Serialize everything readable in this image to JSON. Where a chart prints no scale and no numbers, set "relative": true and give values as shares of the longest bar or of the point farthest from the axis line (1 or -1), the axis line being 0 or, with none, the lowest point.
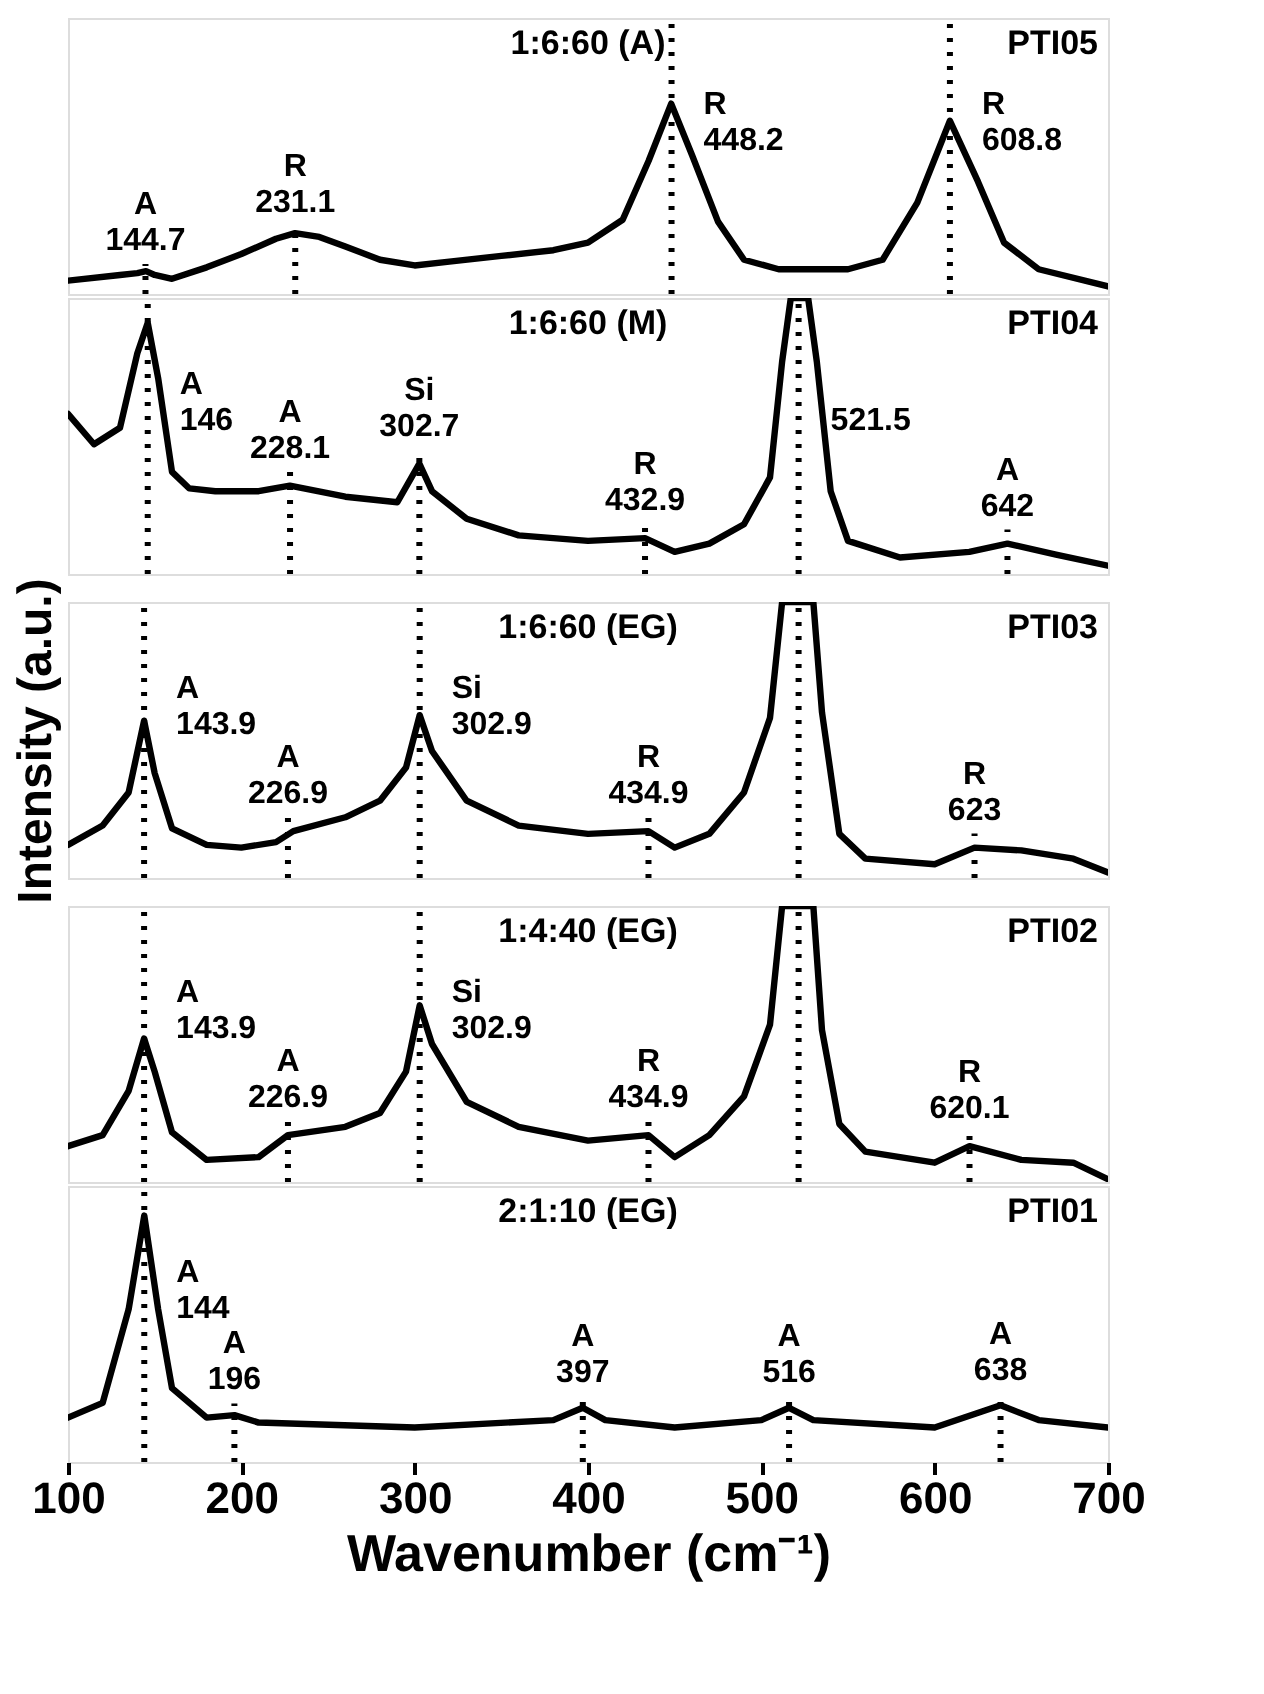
{
  "chart_data": [
    {
      "type": "line",
      "title": "1:6:60  (A)",
      "subtitle": "PTI05",
      "relative": true,
      "xlim": [
        100,
        700
      ],
      "tick_labels": false,
      "line_style": "solid",
      "x": [
        100,
        130,
        140,
        145,
        150,
        160,
        180,
        200,
        220,
        231,
        245,
        260,
        280,
        300,
        320,
        350,
        380,
        400,
        420,
        435,
        448,
        460,
        475,
        490,
        510,
        550,
        570,
        590,
        608.8,
        625,
        640,
        660,
        700
      ],
      "series": [
        {
          "color": "#000000",
          "values": [
            0.07,
            0.1,
            0.11,
            0.12,
            0.1,
            0.08,
            0.14,
            0.21,
            0.29,
            0.32,
            0.3,
            0.25,
            0.18,
            0.15,
            0.17,
            0.2,
            0.23,
            0.27,
            0.39,
            0.7,
            1.0,
            0.73,
            0.38,
            0.18,
            0.13,
            0.13,
            0.18,
            0.48,
            0.91,
            0.59,
            0.27,
            0.13,
            0.04
          ]
        }
      ],
      "ref_lines": [
        {
          "axis": "x",
          "value": 144.7,
          "label": "A\n144.7",
          "color": "#000000",
          "line_style": "dotted"
        },
        {
          "axis": "x",
          "value": 231.1,
          "label": "R\n231.1",
          "color": "#000000",
          "line_style": "dotted"
        },
        {
          "axis": "x",
          "value": 448.2,
          "label": "R\n448.2",
          "color": "#000000",
          "line_style": "dotted"
        },
        {
          "axis": "x",
          "value": 608.8,
          "label": "R\n608.8",
          "color": "#000000",
          "line_style": "dotted"
        }
      ]
    },
    {
      "type": "line",
      "title": "1:6:60  (M)",
      "subtitle": "PTI04",
      "relative": true,
      "xlim": [
        100,
        700
      ],
      "tick_labels": false,
      "line_style": "solid",
      "x": [
        100,
        115,
        130,
        140,
        146,
        152,
        160,
        170,
        185,
        210,
        228,
        260,
        290,
        302.7,
        310,
        330,
        360,
        400,
        432.9,
        450,
        470,
        490,
        505,
        512,
        517,
        521.5,
        527,
        532,
        540,
        550,
        580,
        620,
        642,
        670,
        700
      ],
      "series": [
        {
          "color": "#000000",
          "values": [
            0.58,
            0.47,
            0.53,
            0.8,
            0.91,
            0.71,
            0.37,
            0.31,
            0.3,
            0.3,
            0.32,
            0.28,
            0.26,
            0.4,
            0.3,
            0.2,
            0.14,
            0.12,
            0.13,
            0.08,
            0.11,
            0.18,
            0.35,
            0.77,
            1.0,
            1.0,
            1.0,
            0.77,
            0.3,
            0.12,
            0.06,
            0.08,
            0.11,
            0.07,
            0.03
          ]
        }
      ],
      "ref_lines": [
        {
          "axis": "x",
          "value": 146,
          "label": "A\n146",
          "color": "#000000",
          "line_style": "dotted"
        },
        {
          "axis": "x",
          "value": 228.1,
          "label": "A\n228.1",
          "color": "#000000",
          "line_style": "dotted"
        },
        {
          "axis": "x",
          "value": 302.7,
          "label": "Si\n302.7",
          "color": "#000000",
          "line_style": "dotted"
        },
        {
          "axis": "x",
          "value": 432.9,
          "label": "R\n432.9",
          "color": "#000000",
          "line_style": "dotted"
        },
        {
          "axis": "x",
          "value": 521.5,
          "label": "521.5",
          "color": "#000000",
          "line_style": "dotted"
        },
        {
          "axis": "x",
          "value": 642,
          "label": "A\n642",
          "color": "#000000",
          "line_style": "dotted"
        }
      ]
    },
    {
      "type": "line",
      "title": "1:6:60  (EG)",
      "subtitle": "PTI03",
      "ylabel": "Intensity (a.u.)",
      "relative": true,
      "xlim": [
        100,
        700
      ],
      "tick_labels": false,
      "line_style": "solid",
      "x": [
        100,
        120,
        135,
        143.9,
        150,
        160,
        180,
        200,
        220,
        230,
        260,
        280,
        295,
        302.9,
        310,
        330,
        360,
        400,
        434.9,
        450,
        470,
        490,
        505,
        512,
        521.5,
        530,
        535,
        545,
        560,
        600,
        623,
        650,
        680,
        700
      ],
      "series": [
        {
          "color": "#000000",
          "values": [
            0.12,
            0.19,
            0.31,
            0.57,
            0.38,
            0.18,
            0.12,
            0.11,
            0.13,
            0.17,
            0.22,
            0.28,
            0.4,
            0.59,
            0.46,
            0.28,
            0.19,
            0.16,
            0.17,
            0.11,
            0.16,
            0.31,
            0.58,
            1.0,
            1.0,
            1.0,
            0.6,
            0.16,
            0.07,
            0.05,
            0.11,
            0.1,
            0.07,
            0.02
          ]
        }
      ],
      "ref_lines": [
        {
          "axis": "x",
          "value": 143.9,
          "label": "A\n143.9",
          "color": "#000000",
          "line_style": "dotted"
        },
        {
          "axis": "x",
          "value": 226.9,
          "label": "A\n226.9",
          "color": "#000000",
          "line_style": "dotted"
        },
        {
          "axis": "x",
          "value": 302.9,
          "label": "Si\n302.9",
          "color": "#000000",
          "line_style": "dotted"
        },
        {
          "axis": "x",
          "value": 434.9,
          "label": "R\n434.9",
          "color": "#000000",
          "line_style": "dotted"
        },
        {
          "axis": "x",
          "value": 521.5,
          "label": null,
          "color": "#000000",
          "line_style": "dotted"
        },
        {
          "axis": "x",
          "value": 623,
          "label": "R\n623",
          "color": "#000000",
          "line_style": "dotted"
        }
      ]
    },
    {
      "type": "line",
      "title": "1:4:40  (EG)",
      "subtitle": "PTI02",
      "relative": true,
      "xlim": [
        100,
        700
      ],
      "tick_labels": false,
      "line_style": "solid",
      "x": [
        100,
        120,
        135,
        143.9,
        150,
        160,
        180,
        210,
        226.9,
        260,
        280,
        295,
        302.9,
        310,
        330,
        360,
        400,
        434.9,
        450,
        470,
        490,
        505,
        512,
        521.5,
        530,
        535,
        545,
        560,
        600,
        620.1,
        650,
        680,
        700
      ],
      "series": [
        {
          "color": "#000000",
          "values": [
            0.13,
            0.17,
            0.33,
            0.52,
            0.4,
            0.18,
            0.08,
            0.09,
            0.17,
            0.2,
            0.25,
            0.4,
            0.64,
            0.5,
            0.29,
            0.2,
            0.15,
            0.17,
            0.09,
            0.17,
            0.31,
            0.57,
            1.0,
            1.0,
            1.0,
            0.55,
            0.21,
            0.11,
            0.07,
            0.13,
            0.08,
            0.07,
            0.01
          ]
        }
      ],
      "ref_lines": [
        {
          "axis": "x",
          "value": 143.9,
          "label": "A\n143.9",
          "color": "#000000",
          "line_style": "dotted"
        },
        {
          "axis": "x",
          "value": 226.9,
          "label": "A\n226.9",
          "color": "#000000",
          "line_style": "dotted"
        },
        {
          "axis": "x",
          "value": 302.9,
          "label": "Si\n302.9",
          "color": "#000000",
          "line_style": "dotted"
        },
        {
          "axis": "x",
          "value": 434.9,
          "label": "R\n434.9",
          "color": "#000000",
          "line_style": "dotted"
        },
        {
          "axis": "x",
          "value": 521.5,
          "label": null,
          "color": "#000000",
          "line_style": "dotted"
        },
        {
          "axis": "x",
          "value": 620.1,
          "label": "R\n620.1",
          "color": "#000000",
          "line_style": "dotted"
        }
      ]
    },
    {
      "type": "line",
      "title": "2:1:10  (EG)",
      "subtitle": "PTI01",
      "xlabel": "Wavenumber (cm⁻¹)",
      "relative": true,
      "xlim": [
        100,
        700
      ],
      "xticks": [
        100,
        200,
        300,
        400,
        500,
        600,
        700
      ],
      "tick_labels": "x",
      "line_style": "solid",
      "x": [
        100,
        120,
        135,
        144,
        152,
        160,
        180,
        196,
        210,
        300,
        380,
        397,
        410,
        450,
        500,
        516,
        530,
        600,
        638,
        660,
        700
      ],
      "series": [
        {
          "color": "#000000",
          "values": [
            0.18,
            0.24,
            0.62,
            1.0,
            0.62,
            0.3,
            0.18,
            0.19,
            0.16,
            0.14,
            0.17,
            0.22,
            0.17,
            0.14,
            0.17,
            0.22,
            0.17,
            0.14,
            0.23,
            0.17,
            0.14
          ]
        }
      ],
      "ref_lines": [
        {
          "axis": "x",
          "value": 144,
          "label": "A\n144",
          "color": "#000000",
          "line_style": "dotted"
        },
        {
          "axis": "x",
          "value": 196,
          "label": "A\n196",
          "color": "#000000",
          "line_style": "dotted"
        },
        {
          "axis": "x",
          "value": 397,
          "label": "A\n397",
          "color": "#000000",
          "line_style": "dotted"
        },
        {
          "axis": "x",
          "value": 516,
          "label": "A\n516",
          "color": "#000000",
          "line_style": "dotted"
        },
        {
          "axis": "x",
          "value": 638,
          "label": "A\n638",
          "color": "#000000",
          "line_style": "dotted"
        }
      ]
    }
  ]
}
